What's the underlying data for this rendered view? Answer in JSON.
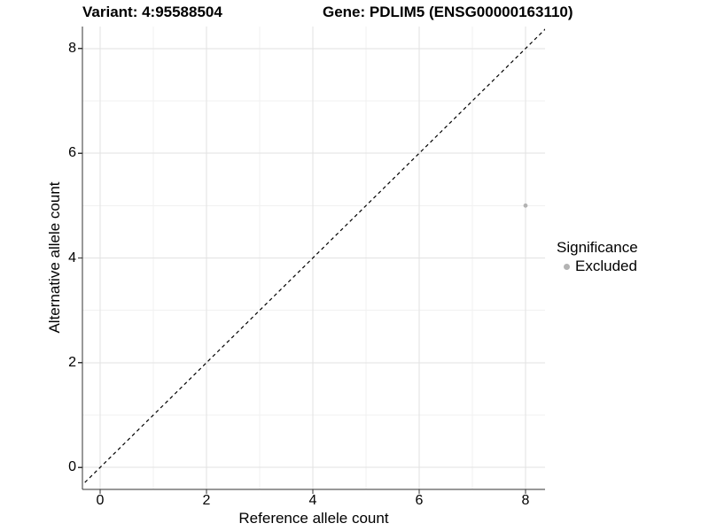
{
  "chart_data": {
    "type": "scatter",
    "title_variant": "Variant: 4:95588504",
    "title_gene": "Gene: PDLIM5 (ENSG00000163110)",
    "xlabel": "Reference allele count",
    "ylabel": "Alternative allele count",
    "xlim": [
      -0.333,
      8.367
    ],
    "ylim": [
      -0.42,
      8.42
    ],
    "x_ticks": [
      0,
      2,
      4,
      6,
      8
    ],
    "y_ticks": [
      0,
      2,
      4,
      6,
      8
    ],
    "x_minor_ticks": [
      1,
      3,
      5,
      7
    ],
    "y_minor_ticks": [
      1,
      3,
      5,
      7
    ],
    "series": [
      {
        "name": "Excluded",
        "color": "#b3b3b3",
        "points": [
          {
            "x": 8,
            "y": 5
          }
        ]
      }
    ],
    "identity_line": {
      "equation": "y = x",
      "style": "dashed",
      "color": "#000000"
    },
    "legend": {
      "title": "Significance",
      "position": "right",
      "entries": [
        {
          "label": "Excluded",
          "color": "#b3b3b3",
          "marker": "circle-icon"
        }
      ]
    },
    "grid": true,
    "colors": {
      "major_grid": "#e2e2e2",
      "minor_grid": "#f1f1f1",
      "axis": "#333333",
      "text": "#000000"
    }
  }
}
